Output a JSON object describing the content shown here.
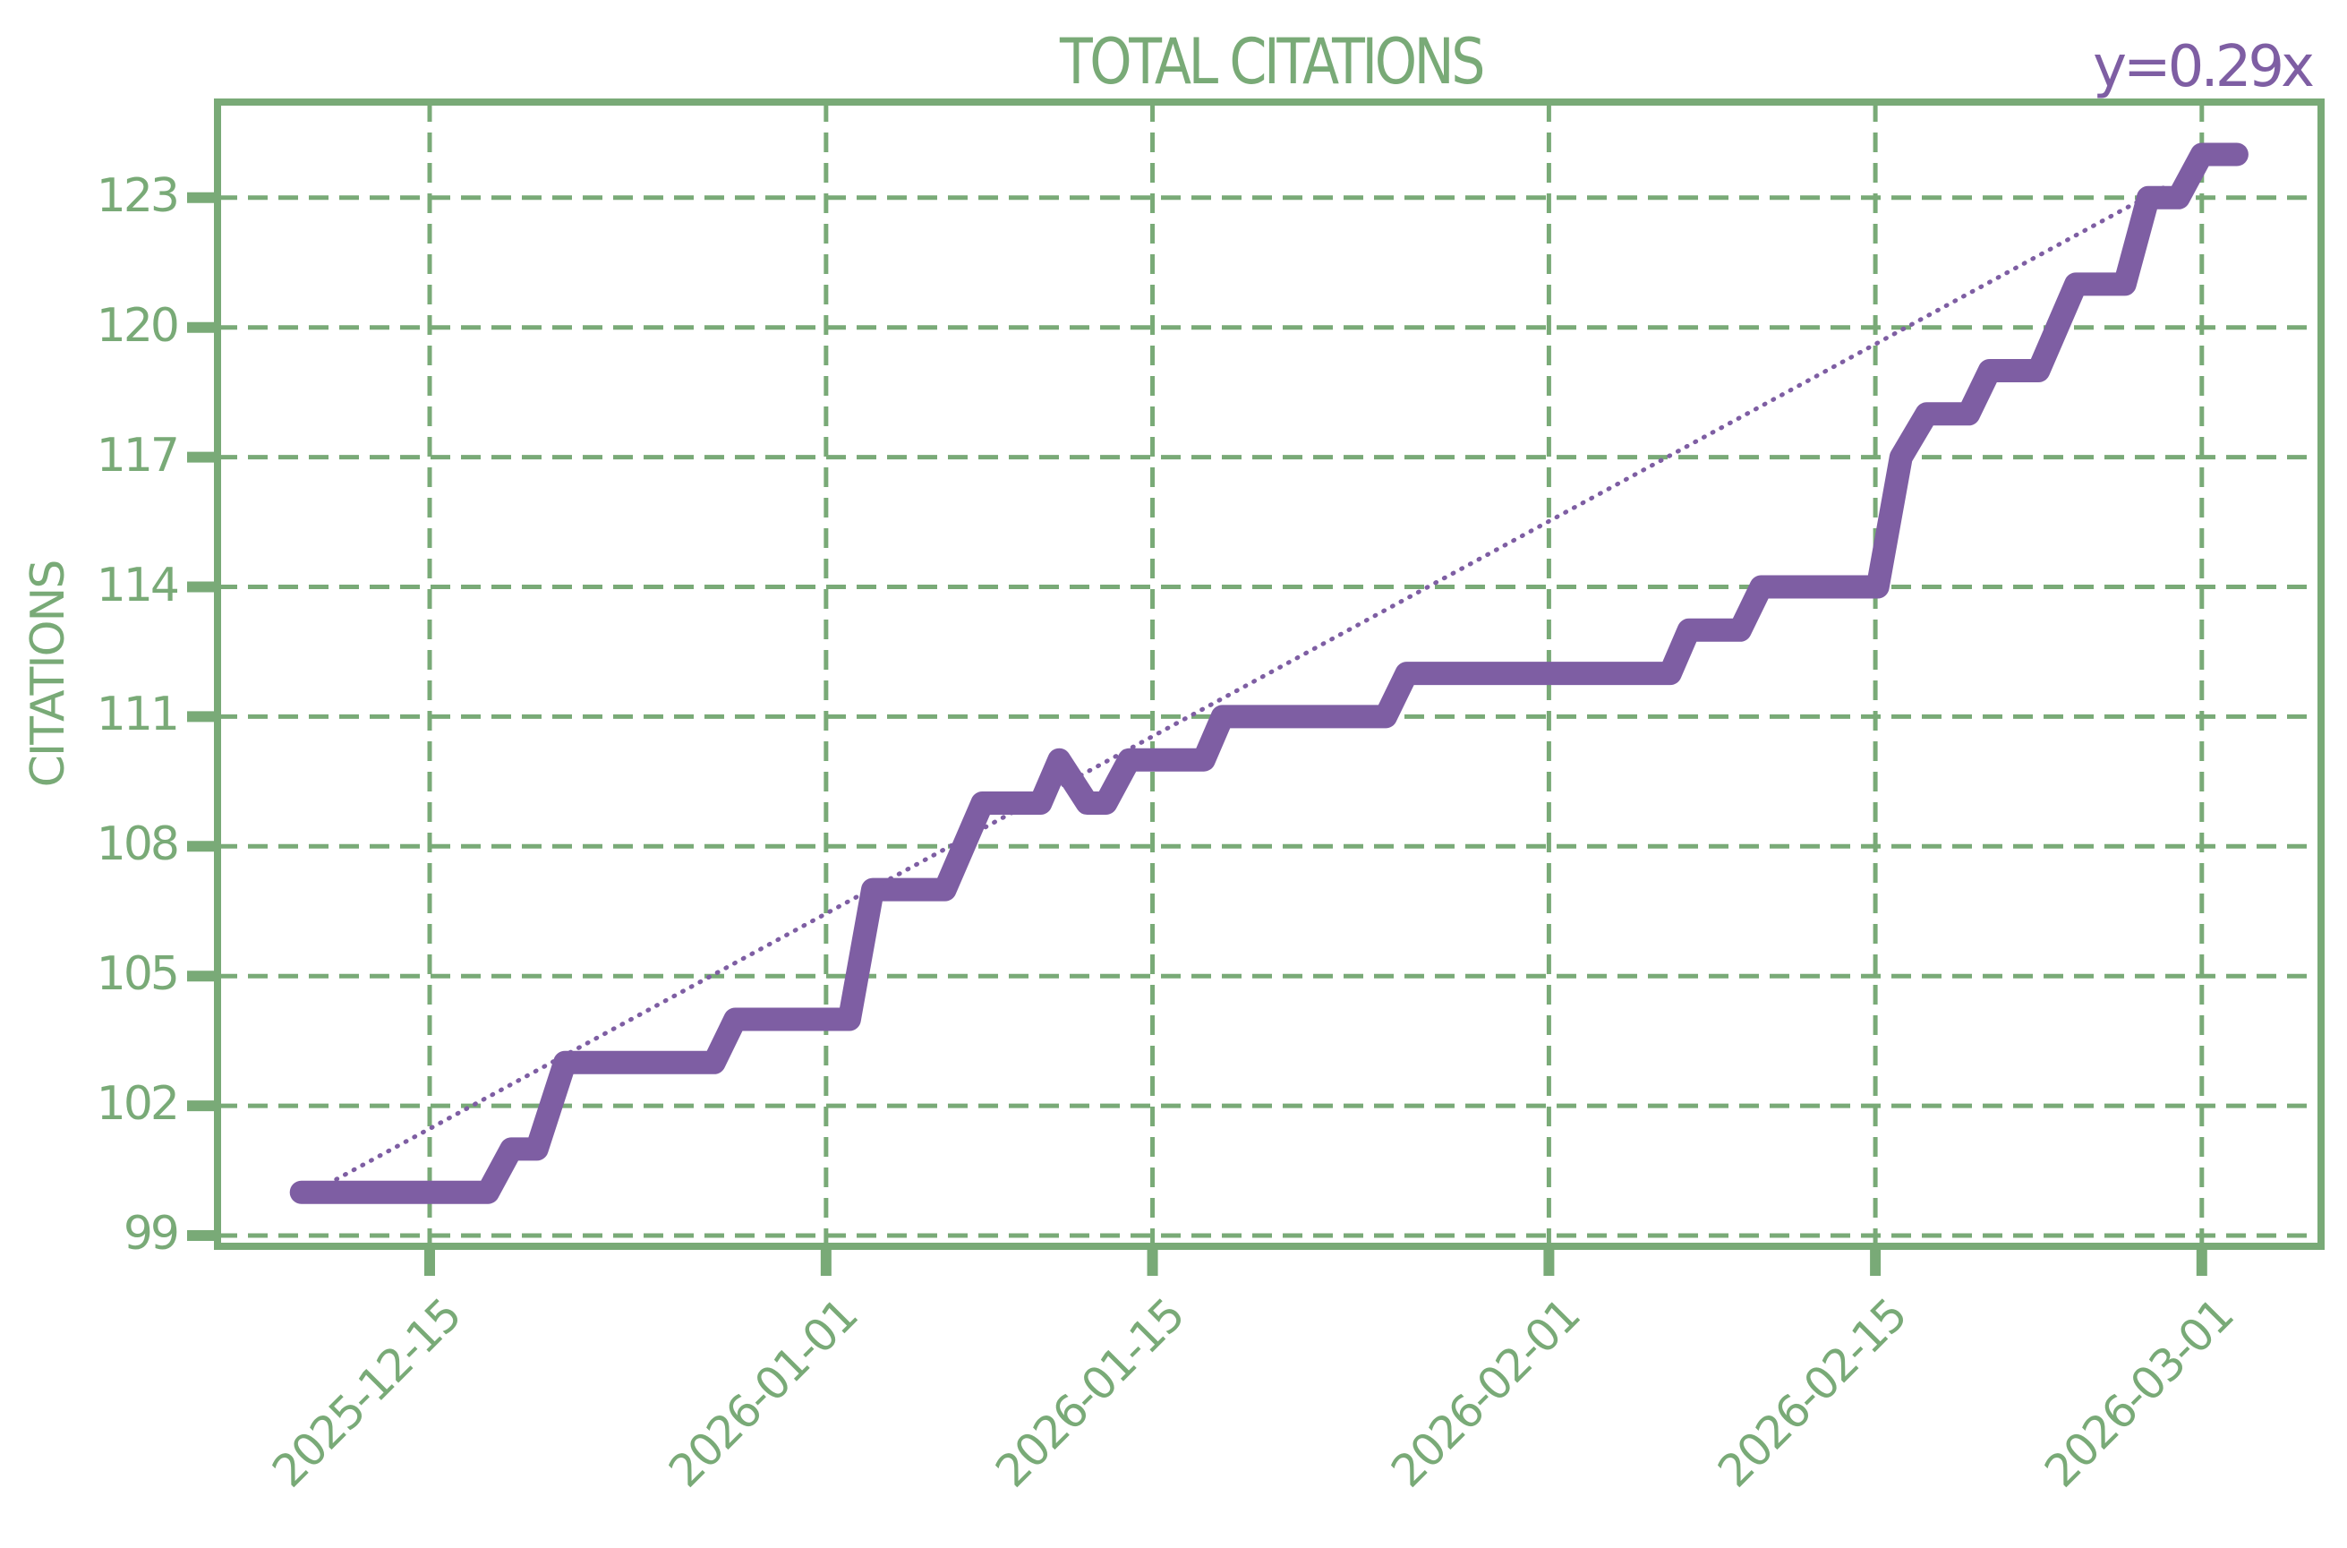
{
  "chart_data": {
    "type": "line",
    "title": "TOTAL CITATIONS",
    "xlabel": "",
    "ylabel": "CITATIONS",
    "annotation": "y=0.29x",
    "grid": true,
    "legend": null,
    "ylim": [
      99,
      124.5
    ],
    "yticks": [
      99,
      102,
      105,
      108,
      111,
      114,
      117,
      120,
      123
    ],
    "xticks": [
      "2025-12-15",
      "2026-01-01",
      "2026-01-15",
      "2026-02-01",
      "2026-02-15",
      "2026-03-01"
    ],
    "xtick_days": [
      0,
      17,
      31,
      48,
      62,
      76
    ],
    "x_unit": "days since 2025-12-15",
    "series": [
      {
        "name": "Total citations",
        "color": "#7E5EA3",
        "points": [
          [
            -5.5,
            100
          ],
          [
            2.5,
            100
          ],
          [
            3.5,
            101
          ],
          [
            4.6,
            101
          ],
          [
            5.8,
            103
          ],
          [
            12.2,
            103
          ],
          [
            13.1,
            104
          ],
          [
            18,
            104
          ],
          [
            19,
            107
          ],
          [
            22.1,
            107
          ],
          [
            23.7,
            109
          ],
          [
            26.2,
            109
          ],
          [
            27,
            110
          ],
          [
            28.2,
            109
          ],
          [
            29,
            109
          ],
          [
            30,
            110
          ],
          [
            33.2,
            110
          ],
          [
            34,
            111
          ],
          [
            41,
            111
          ],
          [
            41.9,
            112
          ],
          [
            53.2,
            112
          ],
          [
            54,
            113
          ],
          [
            56.2,
            113
          ],
          [
            57.1,
            114
          ],
          [
            62.1,
            114
          ],
          [
            63.1,
            117
          ],
          [
            64.2,
            118
          ],
          [
            66,
            118
          ],
          [
            66.9,
            119
          ],
          [
            69,
            119
          ],
          [
            70.6,
            121
          ],
          [
            72.7,
            121
          ],
          [
            73.7,
            123
          ],
          [
            75,
            123
          ],
          [
            76,
            124
          ],
          [
            77.5,
            124
          ]
        ]
      },
      {
        "name": "Trend (y=0.29x)",
        "color": "#7E5EA3",
        "style": "dotted",
        "points": [
          [
            -4.0,
            100.3
          ],
          [
            74.6,
            123.3
          ]
        ]
      }
    ]
  },
  "colors": {
    "axis": "#79AA77",
    "series": "#7E5EA3",
    "background": "#ffffff"
  }
}
